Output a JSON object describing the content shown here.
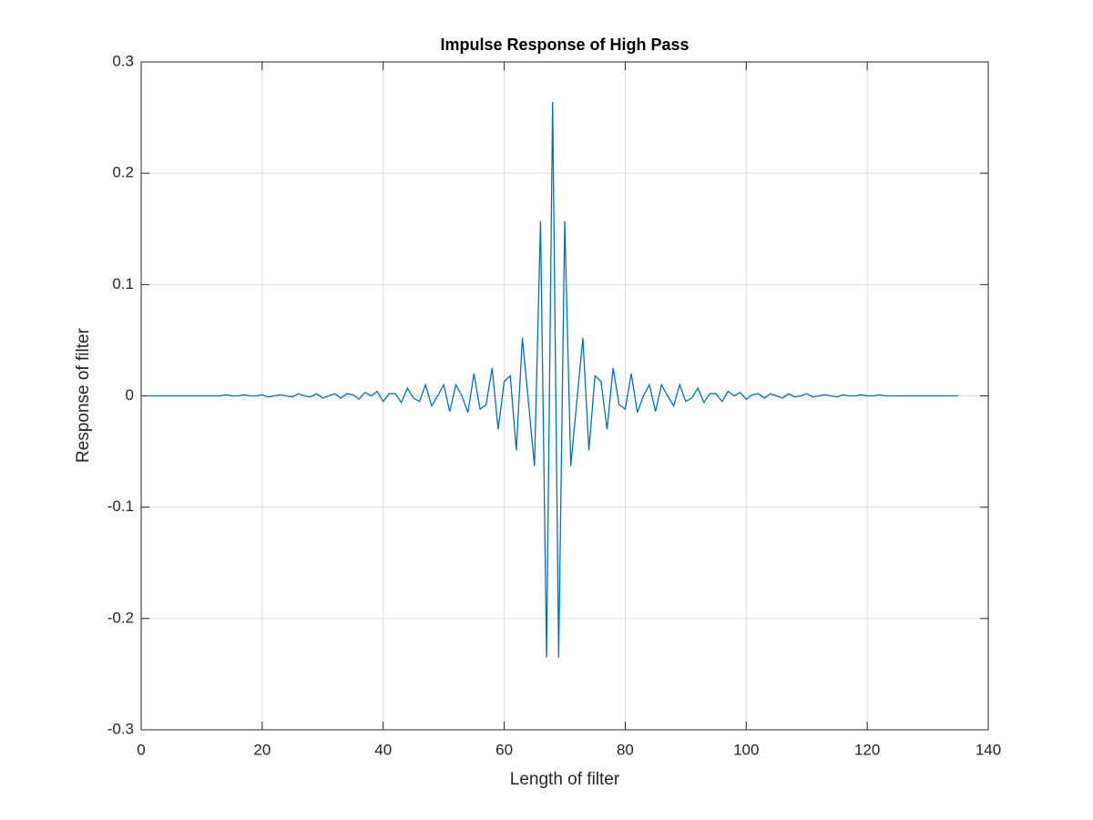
{
  "chart_data": {
    "type": "line",
    "title": "Impulse Response of High Pass",
    "x_label": "Length of filter",
    "y_label": "Response of filter",
    "x": [
      1,
      2,
      3,
      4,
      5,
      6,
      7,
      8,
      9,
      10,
      11,
      12,
      13,
      14,
      15,
      16,
      17,
      18,
      19,
      20,
      21,
      22,
      23,
      24,
      25,
      26,
      27,
      28,
      29,
      30,
      31,
      32,
      33,
      34,
      35,
      36,
      37,
      38,
      39,
      40,
      41,
      42,
      43,
      44,
      45,
      46,
      47,
      48,
      49,
      50,
      51,
      52,
      53,
      54,
      55,
      56,
      57,
      58,
      59,
      60,
      61,
      62,
      63,
      64,
      65,
      66,
      67,
      68,
      69,
      70,
      71,
      72,
      73,
      74,
      75,
      76,
      77,
      78,
      79,
      80,
      81,
      82,
      83,
      84,
      85,
      86,
      87,
      88,
      89,
      90,
      91,
      92,
      93,
      94,
      95,
      96,
      97,
      98,
      99,
      100,
      101,
      102,
      103,
      104,
      105,
      106,
      107,
      108,
      109,
      110,
      111,
      112,
      113,
      114,
      115,
      116,
      117,
      118,
      119,
      120,
      121,
      122,
      123,
      124,
      125,
      126,
      127,
      128,
      129,
      130,
      131,
      132,
      133,
      134,
      135
    ],
    "series": [
      {
        "color": "#0072bd",
        "values": [
          0,
          0,
          0,
          0,
          0,
          0,
          0,
          0,
          0,
          0,
          0,
          0,
          0,
          0.001,
          0,
          0,
          0.001,
          0,
          0,
          0.001,
          -0.001,
          0,
          0.001,
          0,
          -0.001,
          0.002,
          0,
          -0.001,
          0.002,
          -0.002,
          0,
          0.002,
          -0.002,
          0.002,
          0.001,
          -0.003,
          0.003,
          0,
          0.004,
          -0.005,
          0.002,
          0.002,
          -0.006,
          0.007,
          -0.002,
          -0.005,
          0.01,
          -0.009,
          0,
          0.01,
          -0.014,
          0.01,
          0,
          -0.015,
          0.02,
          -0.012,
          -0.008,
          0.025,
          -0.03,
          0.013,
          0.018,
          -0.049,
          0.052,
          -0.005,
          -0.063,
          0.157,
          -0.235,
          0.264,
          -0.235,
          0.157,
          -0.063,
          -0.005,
          0.052,
          -0.049,
          0.018,
          0.013,
          -0.03,
          0.025,
          -0.008,
          -0.012,
          0.02,
          -0.015,
          0,
          0.01,
          -0.014,
          0.01,
          0,
          -0.009,
          0.01,
          -0.005,
          -0.002,
          0.007,
          -0.006,
          0.002,
          0.002,
          -0.005,
          0.004,
          0,
          0.003,
          -0.003,
          0.001,
          0.002,
          -0.002,
          0.002,
          0,
          -0.002,
          0.002,
          -0.001,
          0,
          0.002,
          -0.001,
          0,
          0.001,
          0,
          -0.001,
          0.001,
          0,
          0,
          0.001,
          0,
          0,
          0.001,
          0,
          0,
          0,
          0,
          0,
          0,
          0,
          0,
          0,
          0,
          0,
          0,
          0
        ]
      }
    ],
    "xlim": [
      0,
      140
    ],
    "xticks": [
      0,
      20,
      40,
      60,
      80,
      100,
      120,
      140
    ],
    "ylim": [
      -0.3,
      0.3
    ],
    "yticks": [
      -0.3,
      -0.2,
      -0.1,
      0,
      0.1,
      0.2,
      0.3
    ],
    "grid": true
  }
}
